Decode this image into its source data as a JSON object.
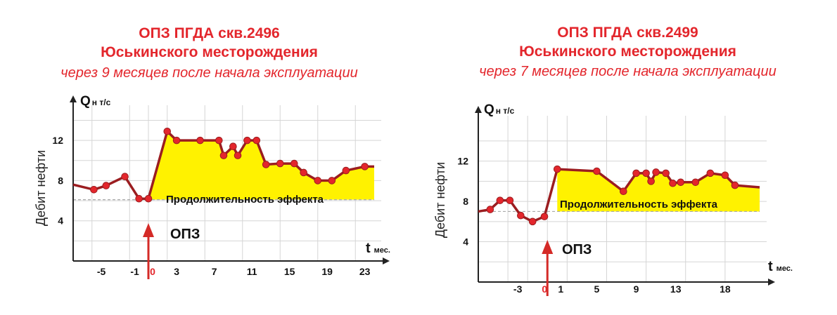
{
  "colors": {
    "title": "#e3262c",
    "line": "#9b1d20",
    "marker": "#e3262c",
    "fill": "#fff200",
    "arrow": "#d42a27",
    "grid": "#d5d5d5",
    "baseline": "#aaaaaa"
  },
  "chart_data": [
    {
      "type": "line",
      "title_line1": "ОПЗ ПГДА скв.2496",
      "title_line2": "Юськинского месторождения",
      "subtitle": "через 9 месяцев  после начала эксплуатации",
      "ylabel": "Дебит нефти",
      "yaxis_symbol": "Q",
      "yaxis_sub": "н т/с",
      "xaxis_symbol": "t",
      "xaxis_unit": "мес.",
      "yticks": [
        "4",
        "8",
        "12"
      ],
      "xticks": [
        "-5",
        "-1",
        "0",
        "3",
        "7",
        "11",
        "15",
        "19",
        "23"
      ],
      "effect_label": "Продолжительность эффекта",
      "event_label": "ОПЗ",
      "baseline": 6.1,
      "event_x": 0,
      "ylim": [
        0,
        15.5
      ],
      "xlim": [
        -8,
        24
      ],
      "series": [
        {
          "x": [
            -8,
            -5.8,
            -4.5,
            -2.5,
            -1,
            0,
            2,
            3,
            5.5,
            7.5,
            8,
            9,
            9.5,
            10.5,
            11.5,
            12.5,
            14,
            15.5,
            16.5,
            18,
            19.5,
            21,
            23,
            24
          ],
          "y": [
            7.6,
            7.1,
            7.5,
            8.4,
            6.2,
            6.2,
            12.9,
            12.0,
            12.0,
            12.0,
            10.5,
            11.4,
            10.5,
            12.0,
            12.0,
            9.6,
            9.7,
            9.7,
            8.8,
            8.0,
            8.0,
            9.0,
            9.4,
            9.4
          ]
        }
      ]
    },
    {
      "type": "line",
      "title_line1": "ОПЗ ПГДА скв.2499",
      "title_line2": "Юськинского месторождения",
      "subtitle": "через 7 месяцев после начала эксплуатации",
      "ylabel": "Дебит нефти",
      "yaxis_symbol": "Q",
      "yaxis_sub": "н т/с",
      "xaxis_symbol": "t",
      "xaxis_unit": "мес.",
      "yticks": [
        "4",
        "8",
        "12"
      ],
      "xticks": [
        "-3",
        "0",
        "1",
        "5",
        "9",
        "13",
        "18"
      ],
      "effect_label": "Продолжительность эффекта",
      "event_label": "ОПЗ",
      "baseline": 7.0,
      "event_x": 0,
      "ylim": [
        0,
        16.5
      ],
      "xlim": [
        -7,
        21.5
      ],
      "series": [
        {
          "x": [
            -7,
            -5.8,
            -4.8,
            -3.8,
            -2.7,
            -1.5,
            -0.3,
            1,
            5,
            7.7,
            9,
            10,
            10.5,
            11,
            12,
            12.7,
            13.5,
            15,
            16.5,
            18,
            19,
            21.5
          ],
          "y": [
            7.0,
            7.2,
            8.1,
            8.1,
            6.6,
            6.0,
            6.5,
            11.2,
            11.0,
            9.0,
            10.8,
            10.8,
            10.0,
            10.9,
            10.8,
            9.8,
            9.9,
            9.9,
            10.8,
            10.6,
            9.6,
            9.4
          ]
        }
      ]
    }
  ]
}
